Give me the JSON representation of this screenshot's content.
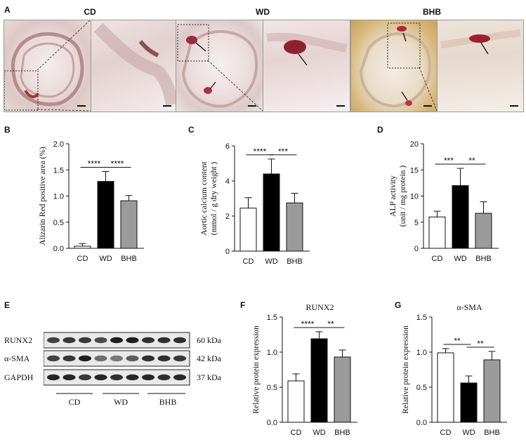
{
  "panels": {
    "A": {
      "label": "A",
      "groups": [
        "CD",
        "WD",
        "BHB"
      ]
    },
    "E": {
      "label": "E",
      "proteins": [
        {
          "name": "RUNX2",
          "kda": "60 kDa"
        },
        {
          "name": "α-SMA",
          "kda": "42 kDa"
        },
        {
          "name": "GAPDH",
          "kda": "37 kDa"
        }
      ],
      "groups": [
        "CD",
        "WD",
        "BHB"
      ]
    }
  },
  "chart_data": [
    {
      "panel": "B",
      "type": "bar",
      "categories": [
        "CD",
        "WD",
        "BHB"
      ],
      "values": [
        0.04,
        1.28,
        0.91
      ],
      "errors": [
        0.05,
        0.19,
        0.1
      ],
      "colors": [
        "#ffffff",
        "#000000",
        "#9b9b9b"
      ],
      "title": "",
      "xlabel": "",
      "ylabel": "Alizarin Red positive area   (%)",
      "ylim": [
        0,
        2.0
      ],
      "yticks": [
        "0.0",
        "0.5",
        "1.0",
        "1.5",
        "2.0"
      ],
      "yticks_values": [
        0,
        0.5,
        1.0,
        1.5,
        2.0
      ],
      "significance": [
        {
          "from": 0,
          "to": 1,
          "label": "****"
        },
        {
          "from": 1,
          "to": 2,
          "label": "****"
        }
      ]
    },
    {
      "panel": "C",
      "type": "bar",
      "categories": [
        "CD",
        "WD",
        "BHB"
      ],
      "values": [
        2.45,
        4.4,
        2.75
      ],
      "errors": [
        0.6,
        0.85,
        0.55
      ],
      "colors": [
        "#ffffff",
        "#000000",
        "#9b9b9b"
      ],
      "title": "",
      "xlabel": "",
      "ylabel": "Aortic calcium content",
      "ylabel2": "(mmol / g dry weight )",
      "ylim": [
        0,
        6
      ],
      "yticks": [
        "0",
        "2",
        "4",
        "6"
      ],
      "yticks_values": [
        0,
        2,
        4,
        6
      ],
      "significance": [
        {
          "from": 0,
          "to": 1,
          "label": "****"
        },
        {
          "from": 1,
          "to": 2,
          "label": "***"
        }
      ]
    },
    {
      "panel": "D",
      "type": "bar",
      "categories": [
        "CD",
        "WD",
        "BHB"
      ],
      "values": [
        6.0,
        12.0,
        6.7
      ],
      "errors": [
        1.1,
        3.3,
        2.2
      ],
      "colors": [
        "#ffffff",
        "#000000",
        "#9b9b9b"
      ],
      "title": "",
      "xlabel": "",
      "ylabel": "ALP activity",
      "ylabel2": "(unit / mg protein )",
      "ylim": [
        0,
        20
      ],
      "yticks": [
        "0",
        "5",
        "10",
        "15",
        "20"
      ],
      "yticks_values": [
        0,
        5,
        10,
        15,
        20
      ],
      "significance": [
        {
          "from": 0,
          "to": 1,
          "label": "***"
        },
        {
          "from": 1,
          "to": 2,
          "label": "**"
        }
      ]
    },
    {
      "panel": "F",
      "type": "bar",
      "categories": [
        "CD",
        "WD",
        "BHB"
      ],
      "values": [
        0.59,
        1.19,
        0.93
      ],
      "errors": [
        0.1,
        0.1,
        0.1
      ],
      "colors": [
        "#ffffff",
        "#000000",
        "#9b9b9b"
      ],
      "title": "RUNX2",
      "xlabel": "",
      "ylabel": "Relative protein expression",
      "ylim": [
        0,
        1.5
      ],
      "yticks": [
        "0.0",
        "0.5",
        "1.0",
        "1.5"
      ],
      "yticks_values": [
        0,
        0.5,
        1.0,
        1.5
      ],
      "significance": [
        {
          "from": 0,
          "to": 1,
          "label": "****"
        },
        {
          "from": 1,
          "to": 2,
          "label": "**"
        }
      ]
    },
    {
      "panel": "G",
      "type": "bar",
      "categories": [
        "CD",
        "WD",
        "BHB"
      ],
      "values": [
        0.99,
        0.56,
        0.89
      ],
      "errors": [
        0.06,
        0.1,
        0.12
      ],
      "colors": [
        "#ffffff",
        "#000000",
        "#9b9b9b"
      ],
      "title": "α-SMA",
      "xlabel": "",
      "ylabel": "Relative protein expression",
      "ylim": [
        0,
        1.5
      ],
      "yticks": [
        "0.0",
        "0.5",
        "1.0",
        "1.5"
      ],
      "yticks_values": [
        0,
        0.5,
        1.0,
        1.5
      ],
      "significance": [
        {
          "from": 0,
          "to": 1,
          "label": "**"
        },
        {
          "from": 1,
          "to": 2,
          "label": "**"
        }
      ]
    }
  ]
}
